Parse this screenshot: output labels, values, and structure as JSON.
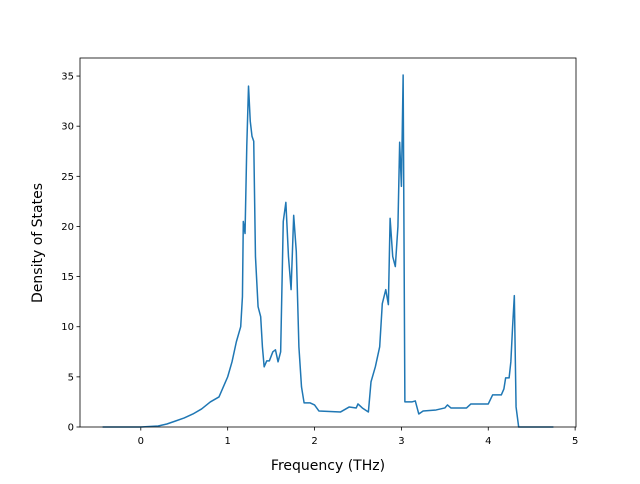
{
  "chart_data": {
    "type": "line",
    "xlabel": "Frequency (THz)",
    "ylabel": "Density of States",
    "x": [
      -0.44,
      0.0,
      0.2,
      0.3,
      0.4,
      0.5,
      0.6,
      0.7,
      0.8,
      0.9,
      1.0,
      1.05,
      1.1,
      1.15,
      1.17,
      1.18,
      1.2,
      1.22,
      1.24,
      1.26,
      1.28,
      1.3,
      1.32,
      1.35,
      1.38,
      1.4,
      1.42,
      1.45,
      1.48,
      1.52,
      1.55,
      1.58,
      1.61,
      1.64,
      1.67,
      1.7,
      1.73,
      1.76,
      1.79,
      1.82,
      1.85,
      1.88,
      1.95,
      2.0,
      2.05,
      2.3,
      2.4,
      2.48,
      2.5,
      2.55,
      2.62,
      2.65,
      2.7,
      2.75,
      2.78,
      2.82,
      2.85,
      2.87,
      2.9,
      2.93,
      2.96,
      2.98,
      3.0,
      3.02,
      3.04,
      3.12,
      3.16,
      3.2,
      3.25,
      3.4,
      3.5,
      3.53,
      3.57,
      3.75,
      3.8,
      4.0,
      4.05,
      4.15,
      4.18,
      4.2,
      4.24,
      4.26,
      4.28,
      4.3,
      4.32,
      4.35,
      4.75
    ],
    "series": [
      {
        "color": "#1f77b4",
        "values": [
          0,
          0,
          0.1,
          0.3,
          0.6,
          0.9,
          1.3,
          1.8,
          2.5,
          3.0,
          5.0,
          6.5,
          8.5,
          10,
          13,
          20.5,
          19.3,
          28,
          34,
          30.5,
          29,
          28.5,
          17,
          12,
          11,
          8,
          6,
          6.6,
          6.6,
          7.5,
          7.7,
          6.5,
          7.5,
          20.5,
          22.4,
          17,
          13.7,
          21.1,
          17.5,
          8,
          4,
          2.4,
          2.4,
          2.2,
          1.6,
          1.5,
          2.0,
          1.9,
          2.3,
          1.9,
          1.5,
          4.5,
          6,
          8,
          12.3,
          13.7,
          12.2,
          20.8,
          17,
          16,
          20,
          28.4,
          24,
          35.1,
          2.5,
          2.5,
          2.6,
          1.3,
          1.6,
          1.7,
          1.9,
          2.2,
          1.9,
          1.9,
          2.3,
          2.3,
          3.2,
          3.2,
          3.8,
          4.9,
          4.9,
          6.5,
          10,
          13.1,
          2,
          0,
          0
        ]
      }
    ],
    "xlim": [
      -0.7,
      5.01
    ],
    "xticks": [
      0,
      1,
      2,
      3,
      4,
      5
    ],
    "ylim": [
      0,
      36.8
    ],
    "yticks": [
      0,
      5,
      10,
      15,
      20,
      25,
      30,
      35
    ]
  }
}
